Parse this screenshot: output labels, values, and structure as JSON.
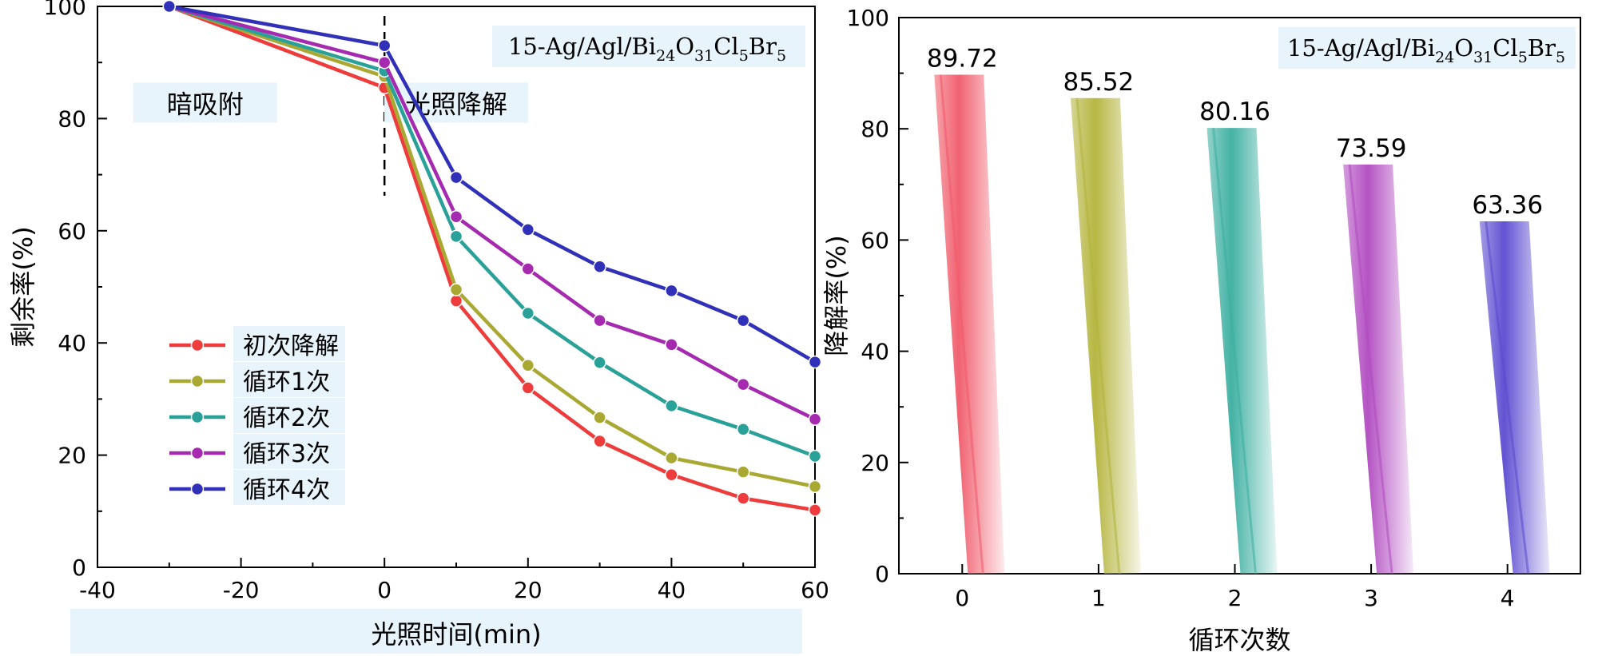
{
  "chart_data": [
    {
      "type": "line",
      "title_main": "15-Ag/Agl/Bi",
      "title_parts": [
        {
          "t": "15-Ag/Agl/Bi",
          "sub": false
        },
        {
          "t": "24",
          "sub": true
        },
        {
          "t": "O",
          "sub": false
        },
        {
          "t": "31",
          "sub": true
        },
        {
          "t": "Cl",
          "sub": false
        },
        {
          "t": "5",
          "sub": true
        },
        {
          "t": "Br",
          "sub": false
        },
        {
          "t": "5",
          "sub": true
        }
      ],
      "xlabel": "光照时间(min)",
      "ylabel": "剩余率(%)",
      "xlim": [
        -40,
        60
      ],
      "ylim": [
        0,
        100
      ],
      "xticks": [
        -40,
        -20,
        0,
        20,
        40,
        60
      ],
      "yticks": [
        0,
        20,
        40,
        60,
        80,
        100
      ],
      "annotations": [
        {
          "text": "暗吸附",
          "x": -25,
          "y": 81
        },
        {
          "text": "光照降解",
          "x": 10,
          "y": 81
        }
      ],
      "divider_x": 0,
      "legend_placement": "left-middle",
      "x": [
        -30,
        0,
        10,
        20,
        30,
        40,
        50,
        60
      ],
      "series": [
        {
          "name": "初次降解",
          "color": "#ee3b3b",
          "values": [
            100,
            85.5,
            47.5,
            32,
            22.5,
            16.5,
            12.3,
            10.2
          ]
        },
        {
          "name": "循环1次",
          "color": "#a8a832",
          "values": [
            100,
            87.5,
            49.5,
            36,
            26.7,
            19.5,
            17,
            14.4
          ]
        },
        {
          "name": "循环2次",
          "color": "#2aa198",
          "values": [
            100,
            88.5,
            59,
            45.3,
            36.5,
            28.8,
            24.6,
            19.8
          ]
        },
        {
          "name": "循环3次",
          "color": "#a52ab0",
          "values": [
            100,
            90,
            62.5,
            53.2,
            44,
            39.7,
            32.6,
            26.4
          ]
        },
        {
          "name": "循环4次",
          "color": "#3030b8",
          "values": [
            100,
            93,
            69.5,
            60.2,
            53.6,
            49.3,
            44,
            36.6
          ]
        }
      ]
    },
    {
      "type": "bar",
      "title_parts": [
        {
          "t": "15-Ag/Agl/Bi",
          "sub": false
        },
        {
          "t": "24",
          "sub": true
        },
        {
          "t": "O",
          "sub": false
        },
        {
          "t": "31",
          "sub": true
        },
        {
          "t": "Cl",
          "sub": false
        },
        {
          "t": "5",
          "sub": true
        },
        {
          "t": "Br",
          "sub": false
        },
        {
          "t": "5",
          "sub": true
        }
      ],
      "xlabel": "循环次数",
      "ylabel": "降解率(%)",
      "ylim": [
        0,
        100
      ],
      "yticks": [
        0,
        20,
        40,
        60,
        80,
        100
      ],
      "categories": [
        "0",
        "1",
        "2",
        "3",
        "4"
      ],
      "values": [
        89.72,
        85.52,
        80.16,
        73.59,
        63.36
      ],
      "value_labels": [
        "89.72",
        "85.52",
        "80.16",
        "73.59",
        "63.36"
      ],
      "colors": [
        "#f05a6a",
        "#b3b33a",
        "#3aaea0",
        "#b04ac0",
        "#5a4ad0"
      ]
    }
  ]
}
